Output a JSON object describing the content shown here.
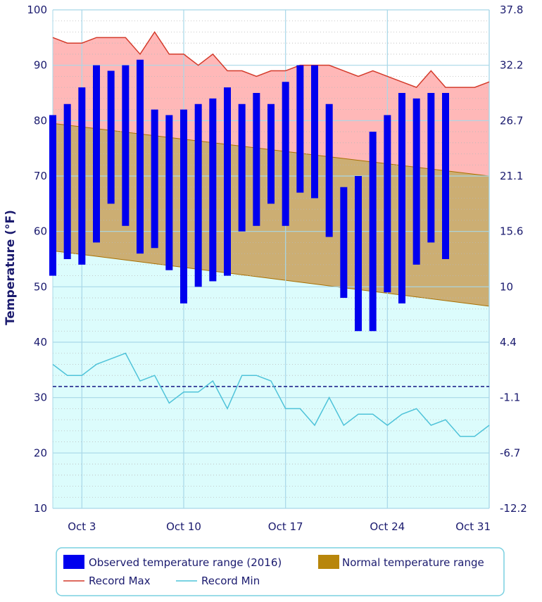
{
  "chart_data": {
    "type": "bar",
    "ylabel": "Temperature (°F)",
    "ylim": [
      10,
      100
    ],
    "y_ticks": [
      10,
      20,
      30,
      40,
      50,
      60,
      70,
      80,
      90,
      100
    ],
    "y2_ticks": [
      "-12.2",
      "-6.7",
      "-1.1",
      "4.4",
      "10",
      "15.6",
      "21.1",
      "26.7",
      "32.2",
      "37.8"
    ],
    "x_tick_days": [
      3,
      10,
      17,
      24,
      31
    ],
    "x_tick_labels": [
      "Oct 3",
      "Oct 10",
      "Oct 17",
      "Oct 24",
      "Oct 31"
    ],
    "x_range_days": [
      1,
      31
    ],
    "freezing_line": 32,
    "colors": {
      "observed": "#0000ee",
      "normal_fill": "#c9a05a",
      "normal_edge": "#a86f00",
      "record_max_fill": "#ffb8b8",
      "record_max_line": "#d43a2a",
      "record_min_fill": "#dcfcfc",
      "record_min_line": "#4fc3d9",
      "freezing_line": "#00007a",
      "grid": "#a8d8e8",
      "axis_text": "#1a1a6e"
    },
    "observed": {
      "name": "Observed temperature range (2016)",
      "days": [
        1,
        2,
        3,
        4,
        5,
        6,
        7,
        8,
        9,
        10,
        11,
        12,
        13,
        14,
        15,
        16,
        17,
        18,
        19,
        20,
        21,
        22,
        23,
        24,
        25,
        26,
        27,
        28
      ],
      "low": [
        52,
        55,
        54,
        58,
        65,
        61,
        56,
        57,
        53,
        47,
        50,
        51,
        52,
        60,
        61,
        65,
        61,
        67,
        66,
        59,
        48,
        42,
        42,
        49,
        47,
        54,
        58,
        55
      ],
      "high": [
        81,
        83,
        86,
        90,
        89,
        90,
        91,
        82,
        81,
        82,
        83,
        84,
        86,
        83,
        85,
        83,
        87,
        90,
        90,
        83,
        68,
        70,
        78,
        81,
        85,
        84,
        85,
        85
      ]
    },
    "normal": {
      "name": "Normal temperature range",
      "days": [
        1,
        31
      ],
      "low": [
        56.5,
        46.5
      ],
      "high": [
        79.5,
        70.0
      ]
    },
    "record_max": {
      "name": "Record Max",
      "days": [
        1,
        2,
        3,
        4,
        5,
        6,
        7,
        8,
        9,
        10,
        11,
        12,
        13,
        14,
        15,
        16,
        17,
        18,
        19,
        20,
        21,
        22,
        23,
        24,
        25,
        26,
        27,
        28,
        29,
        30,
        31
      ],
      "values": [
        95,
        94,
        94,
        95,
        95,
        95,
        92,
        96,
        92,
        92,
        90,
        92,
        89,
        89,
        88,
        89,
        89,
        90,
        90,
        90,
        89,
        88,
        89,
        88,
        87,
        86,
        89,
        86,
        86,
        86,
        87
      ]
    },
    "record_min": {
      "name": "Record Min",
      "days": [
        1,
        2,
        3,
        4,
        5,
        6,
        7,
        8,
        9,
        10,
        11,
        12,
        13,
        14,
        15,
        16,
        17,
        18,
        19,
        20,
        21,
        22,
        23,
        24,
        25,
        26,
        27,
        28,
        29,
        30,
        31
      ],
      "values": [
        36,
        34,
        34,
        36,
        37,
        38,
        33,
        34,
        29,
        31,
        31,
        33,
        28,
        34,
        34,
        33,
        28,
        28,
        25,
        30,
        25,
        27,
        27,
        25,
        27,
        28,
        25,
        26,
        23,
        23,
        25
      ]
    },
    "legend": {
      "observed_label": "Observed temperature range (2016)",
      "normal_label": "Normal temperature range",
      "record_max_label": "Record Max",
      "record_min_label": "Record Min",
      "placement": "bottom"
    }
  }
}
